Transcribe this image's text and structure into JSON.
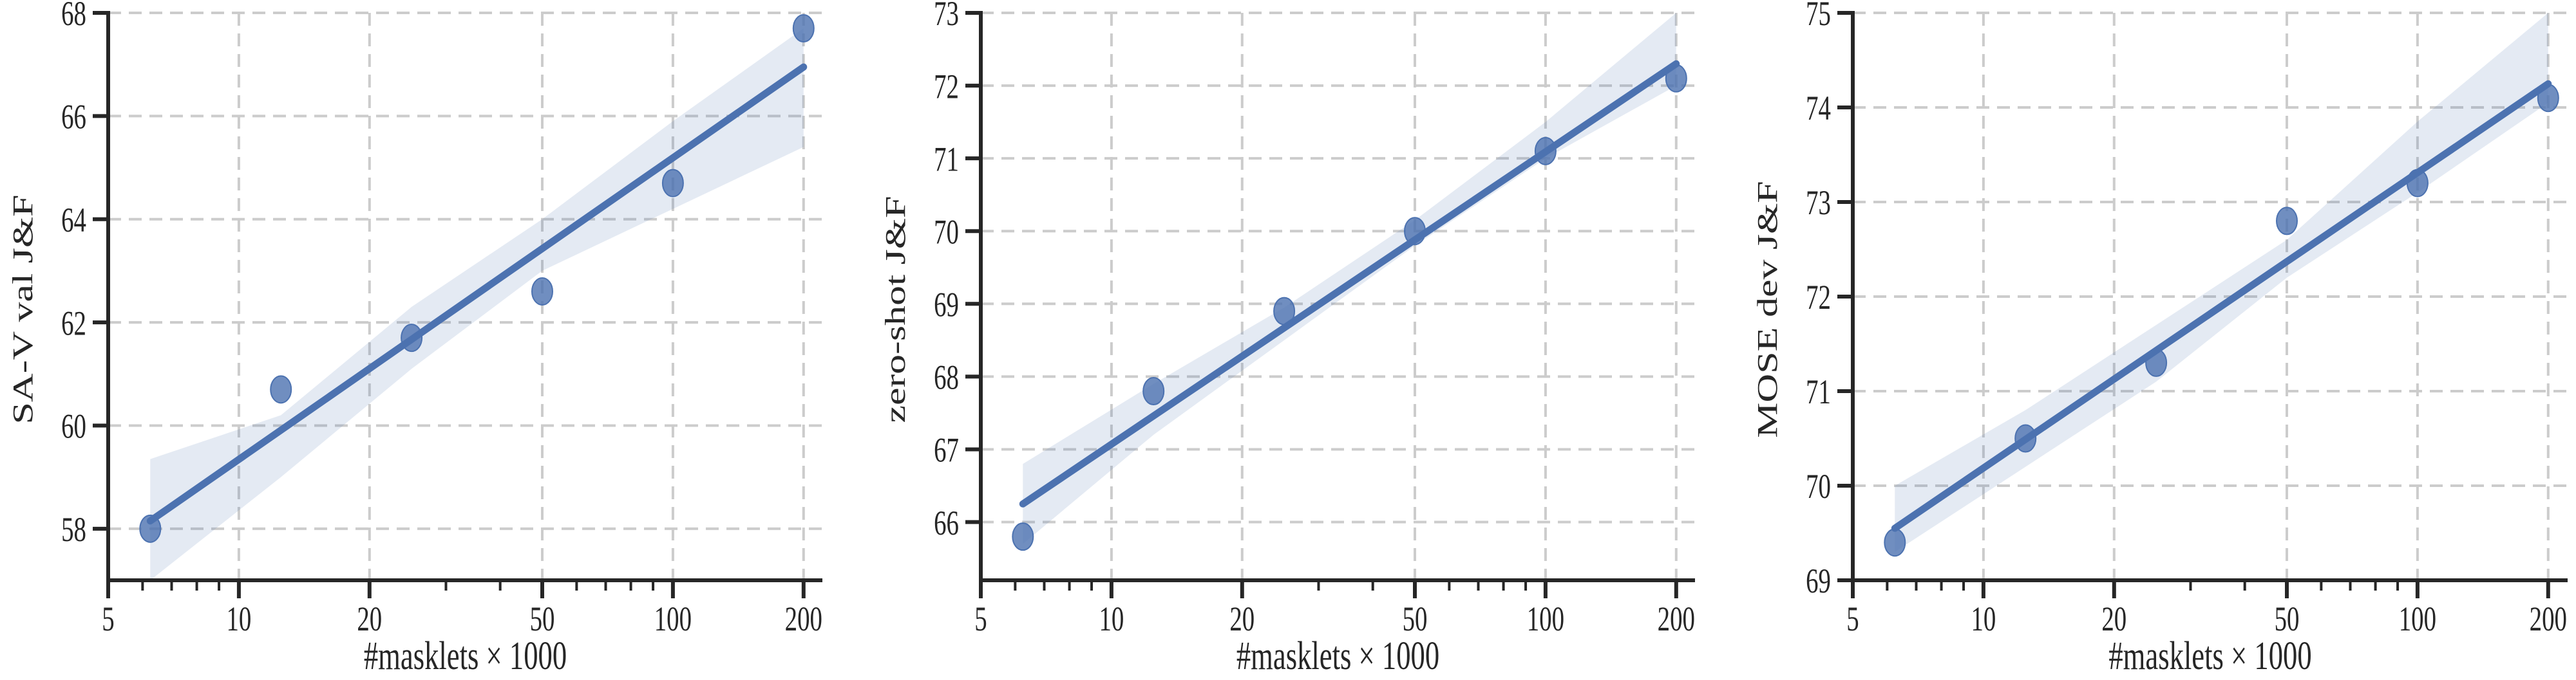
{
  "figure": {
    "panels_count": 3,
    "colors": {
      "accent": "#4C72B0",
      "band": "#4C72B0",
      "grid": "#cccccc",
      "spine": "#262626",
      "text": "#262626",
      "background": "#ffffff"
    }
  },
  "chart_data": [
    {
      "type": "scatter",
      "title": "",
      "xlabel": "#masklets × 1000",
      "ylabel": "SA-V val J&F",
      "xscale": "log",
      "xlim": [
        5,
        210
      ],
      "ylim": [
        57,
        68
      ],
      "xticks": [
        5,
        10,
        20,
        50,
        100,
        200
      ],
      "xtick_labels": [
        "5",
        "10",
        "20",
        "50",
        "100",
        "200"
      ],
      "yticks": [
        58,
        60,
        62,
        64,
        66,
        68
      ],
      "ytick_labels": [
        "58",
        "60",
        "62",
        "64",
        "66",
        "68"
      ],
      "grid": true,
      "grid_style": "dashed",
      "legend": null,
      "x": [
        6.25,
        12.5,
        25,
        50,
        100,
        200
      ],
      "y": [
        58.0,
        60.7,
        61.7,
        62.6,
        64.7,
        67.7
      ],
      "regression": {
        "type": "linear-in-log-x",
        "y_start": 58.15,
        "y_end": 66.95
      },
      "ci_band": {
        "upper": [
          59.35,
          60.2,
          62.3,
          64.0,
          65.9,
          67.7
        ],
        "lower": [
          57.0,
          59.0,
          61.1,
          63.0,
          64.2,
          65.4
        ]
      }
    },
    {
      "type": "scatter",
      "title": "",
      "xlabel": "#masklets × 1000",
      "ylabel": "zero-shot J&F",
      "xscale": "log",
      "xlim": [
        5,
        210
      ],
      "ylim": [
        65.2,
        73
      ],
      "xticks": [
        5,
        10,
        20,
        50,
        100,
        200
      ],
      "xtick_labels": [
        "5",
        "10",
        "20",
        "50",
        "100",
        "200"
      ],
      "yticks": [
        66,
        67,
        68,
        69,
        70,
        71,
        72,
        73
      ],
      "ytick_labels": [
        "66",
        "67",
        "68",
        "69",
        "70",
        "71",
        "72",
        "73"
      ],
      "grid": true,
      "grid_style": "dashed",
      "legend": null,
      "x": [
        6.25,
        12.5,
        25,
        50,
        100,
        200
      ],
      "y": [
        65.8,
        67.8,
        68.9,
        70.0,
        71.1,
        72.1
      ],
      "regression": {
        "type": "linear-in-log-x",
        "y_start": 66.25,
        "y_end": 72.3
      },
      "ci_band": {
        "upper": [
          66.8,
          67.9,
          68.95,
          70.15,
          71.5,
          73.0
        ],
        "lower": [
          65.7,
          67.2,
          68.5,
          69.8,
          71.0,
          72.0
        ]
      }
    },
    {
      "type": "scatter",
      "title": "",
      "xlabel": "#masklets × 1000",
      "ylabel": "MOSE dev J&F",
      "xscale": "log",
      "xlim": [
        5,
        210
      ],
      "ylim": [
        69,
        75
      ],
      "xticks": [
        5,
        10,
        20,
        50,
        100,
        200
      ],
      "xtick_labels": [
        "5",
        "10",
        "20",
        "50",
        "100",
        "200"
      ],
      "yticks": [
        69,
        70,
        71,
        72,
        73,
        74,
        75
      ],
      "ytick_labels": [
        "69",
        "70",
        "71",
        "72",
        "73",
        "74",
        "75"
      ],
      "grid": true,
      "grid_style": "dashed",
      "legend": null,
      "x": [
        6.25,
        12.5,
        25,
        50,
        100,
        200
      ],
      "y": [
        69.4,
        70.5,
        71.3,
        72.8,
        73.2,
        74.1
      ],
      "regression": {
        "type": "linear-in-log-x",
        "y_start": 69.55,
        "y_end": 74.25
      },
      "ci_band": {
        "upper": [
          70.0,
          70.8,
          71.7,
          72.6,
          73.85,
          75.0
        ],
        "lower": [
          69.3,
          70.2,
          71.1,
          72.2,
          73.1,
          74.05
        ]
      }
    }
  ]
}
